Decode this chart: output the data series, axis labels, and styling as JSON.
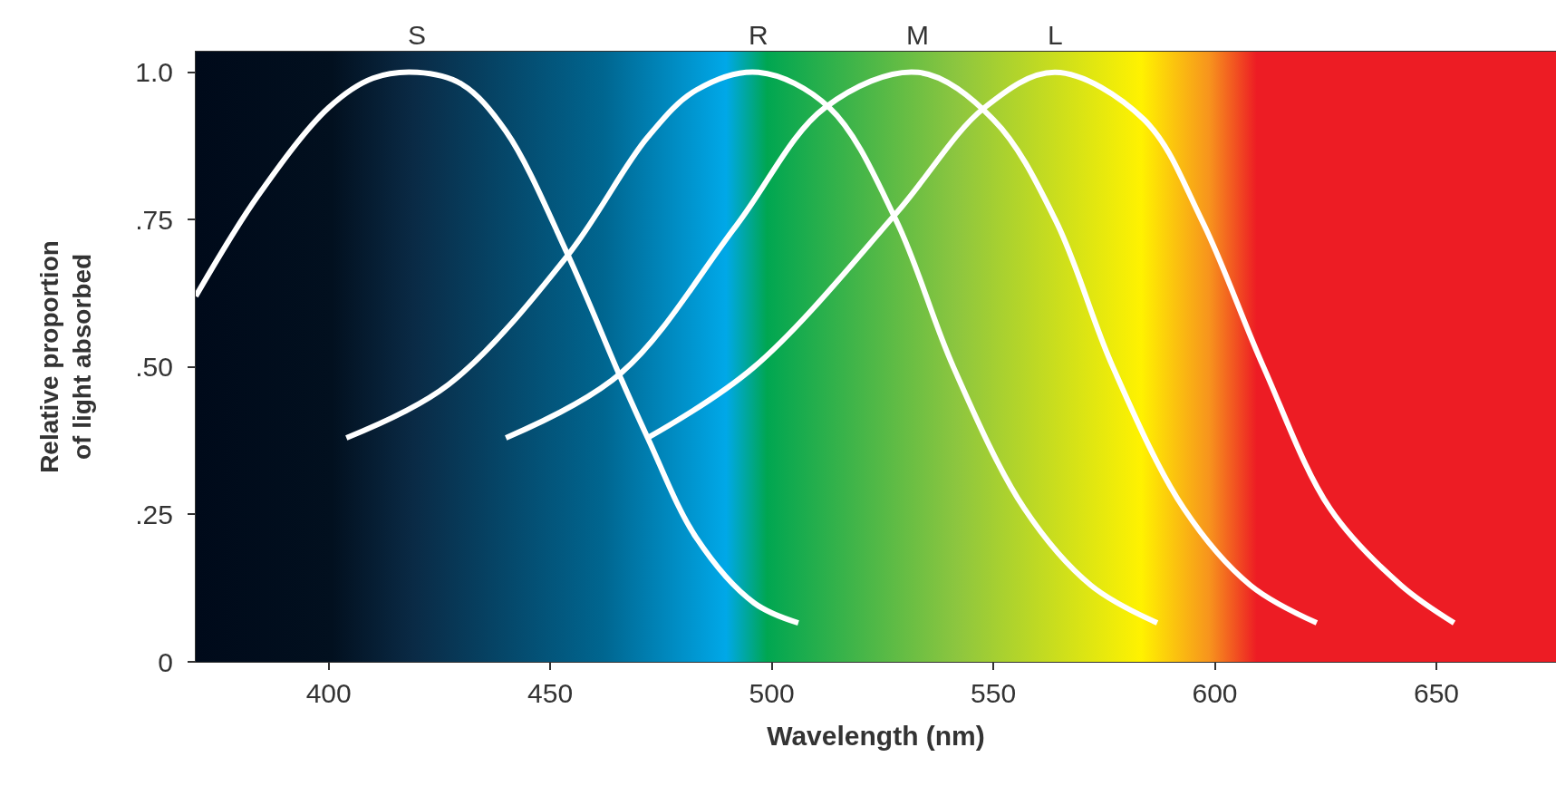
{
  "chart_data": {
    "type": "line",
    "xlabel": "Wavelength (nm)",
    "ylabel": "Relative proportion of light absorbed",
    "xlim": [
      370,
      677
    ],
    "ylim": [
      0,
      1.035
    ],
    "xticks": [
      400,
      450,
      500,
      550,
      600,
      650
    ],
    "yticks": [
      {
        "value": 0,
        "label": "0"
      },
      {
        "value": 0.25,
        "label": ".25"
      },
      {
        "value": 0.5,
        "label": ".50"
      },
      {
        "value": 0.75,
        "label": ".75"
      },
      {
        "value": 1,
        "label": "1.0"
      }
    ],
    "grid": false,
    "legend": false,
    "marker": "none",
    "line_style": "solid",
    "series": [
      {
        "name": "S",
        "color": "#ffffff",
        "x": [
          370,
          384,
          400,
          410,
          420,
          430,
          440,
          454,
          466,
          472,
          483,
          496,
          506
        ],
        "values": [
          0.62,
          0.79,
          0.94,
          0.99,
          1.0,
          0.98,
          0.9,
          0.69,
          0.48,
          0.38,
          0.21,
          0.1,
          0.066
        ]
      },
      {
        "name": "R",
        "color": "#ffffff",
        "x": [
          404,
          427,
          454,
          472,
          483,
          497,
          513,
          528,
          541,
          557,
          572,
          587
        ],
        "values": [
          0.38,
          0.47,
          0.69,
          0.89,
          0.97,
          1.0,
          0.94,
          0.75,
          0.5,
          0.26,
          0.13,
          0.066
        ]
      },
      {
        "name": "M",
        "color": "#ffffff",
        "x": [
          440,
          466,
          492,
          512,
          533,
          550,
          564,
          577,
          593,
          608,
          623
        ],
        "values": [
          0.38,
          0.49,
          0.74,
          0.94,
          1.0,
          0.92,
          0.75,
          0.5,
          0.26,
          0.13,
          0.066
        ]
      },
      {
        "name": "L",
        "color": "#ffffff",
        "x": [
          472,
          496,
          528,
          548,
          564,
          584,
          597,
          611,
          626,
          642,
          654
        ],
        "values": [
          0.38,
          0.5,
          0.76,
          0.94,
          1.0,
          0.92,
          0.75,
          0.5,
          0.26,
          0.13,
          0.066
        ]
      }
    ]
  }
}
